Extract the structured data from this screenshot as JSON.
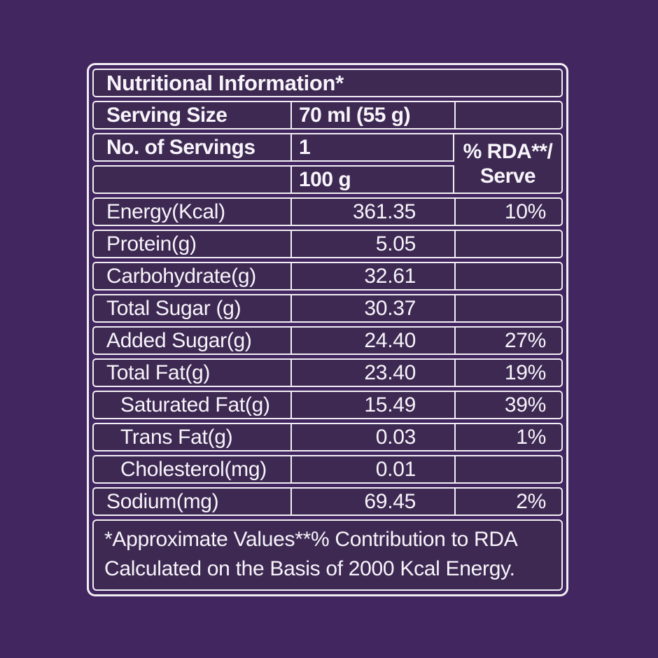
{
  "colors": {
    "page_background": "#422660",
    "cell_background": "#3D2952",
    "border": "#F2EFF4",
    "text": "#F7F4FA"
  },
  "label": {
    "title": "Nutritional Information*",
    "serving_size": {
      "label": "Serving Size",
      "value": "70 ml (55 g)"
    },
    "servings": {
      "label": "No. of Servings",
      "value": "1"
    },
    "per_column_header": "100 g",
    "rda_header": {
      "line1": "% RDA**/",
      "line2": "Serve"
    },
    "rows": [
      {
        "label": "Energy(Kcal)",
        "per100": "361.35",
        "rda": "10%"
      },
      {
        "label": "Protein(g)",
        "per100": "5.05",
        "rda": ""
      },
      {
        "label": "Carbohydrate(g)",
        "per100": "32.61",
        "rda": ""
      },
      {
        "label": "Total Sugar (g)",
        "per100": "30.37",
        "rda": ""
      },
      {
        "label": "Added Sugar(g)",
        "per100": "24.40",
        "rda": "27%"
      },
      {
        "label": "Total Fat(g)",
        "per100": "23.40",
        "rda": "19%"
      },
      {
        "label": "Saturated Fat(g)",
        "per100": "15.49",
        "rda": "39%"
      },
      {
        "label": "Trans Fat(g)",
        "per100": "0.03",
        "rda": "1%"
      },
      {
        "label": "Cholesterol(mg)",
        "per100": "0.01",
        "rda": ""
      },
      {
        "label": "Sodium(mg)",
        "per100": "69.45",
        "rda": "2%"
      }
    ],
    "footnote": {
      "line1": "*Approximate Values**% Contribution to RDA",
      "line2": "Calculated on the Basis of 2000 Kcal Energy."
    }
  }
}
